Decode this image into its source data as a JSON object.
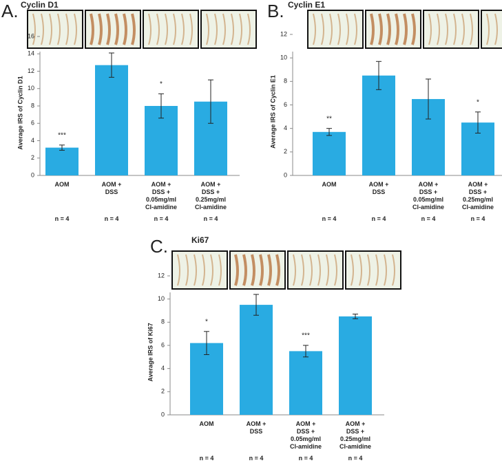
{
  "chart_data": [
    {
      "type": "bar",
      "panel_label": "A.",
      "title": "Cyclin D1",
      "ylabel": "Average IRS of Cyclin D1",
      "categories": [
        "AOM",
        "AOM +\nDSS",
        "AOM +\nDSS +\n0.05mg/ml\nCl-amidine",
        "AOM +\nDSS +\n0.25mg/ml\nCl-amidine"
      ],
      "n_labels": [
        "n = 4",
        "n = 4",
        "n = 4",
        "n = 4"
      ],
      "values": [
        3.2,
        12.7,
        8.0,
        8.5
      ],
      "errors": [
        0.3,
        1.4,
        1.4,
        2.5
      ],
      "annotations": [
        "***",
        null,
        "*",
        null
      ],
      "color": "#29abe2",
      "ylim": [
        0,
        16
      ],
      "yticks": [
        0,
        2,
        4,
        6,
        8,
        10,
        12,
        14,
        16
      ]
    },
    {
      "type": "bar",
      "panel_label": "B.",
      "title": "Cyclin E1",
      "ylabel": "Average IRS of Cyclin E1",
      "categories": [
        "AOM",
        "AOM +\nDSS",
        "AOM +\nDSS +\n0.05mg/ml\nCl-amidine",
        "AOM +\nDSS +\n0.25mg/ml\nCl-amidine"
      ],
      "n_labels": [
        "n = 4",
        "n = 4",
        "n = 4",
        "n = 4"
      ],
      "values": [
        3.7,
        8.5,
        6.5,
        4.5
      ],
      "errors": [
        0.3,
        1.2,
        1.7,
        0.9
      ],
      "annotations": [
        "**",
        null,
        null,
        "*"
      ],
      "color": "#29abe2",
      "ylim": [
        0,
        12
      ],
      "yticks": [
        0,
        2,
        4,
        6,
        8,
        10,
        12
      ]
    },
    {
      "type": "bar",
      "panel_label": "C.",
      "title": "Ki67",
      "ylabel": "Average IRS of Ki67",
      "categories": [
        "AOM",
        "AOM +\nDSS",
        "AOM +\nDSS +\n0.05mg/ml\nCl-amidine",
        "AOM +\nDSS +\n0.25mg/ml\nCl-amidine"
      ],
      "n_labels": [
        "n = 4",
        "n = 4",
        "n = 4",
        "n = 4"
      ],
      "values": [
        6.2,
        9.5,
        5.5,
        8.5
      ],
      "errors": [
        1.0,
        0.9,
        0.5,
        0.2
      ],
      "annotations": [
        "*",
        null,
        "***",
        null
      ],
      "color": "#29abe2",
      "ylim": [
        0,
        12
      ],
      "yticks": [
        0,
        2,
        4,
        6,
        8,
        10,
        12
      ]
    }
  ]
}
